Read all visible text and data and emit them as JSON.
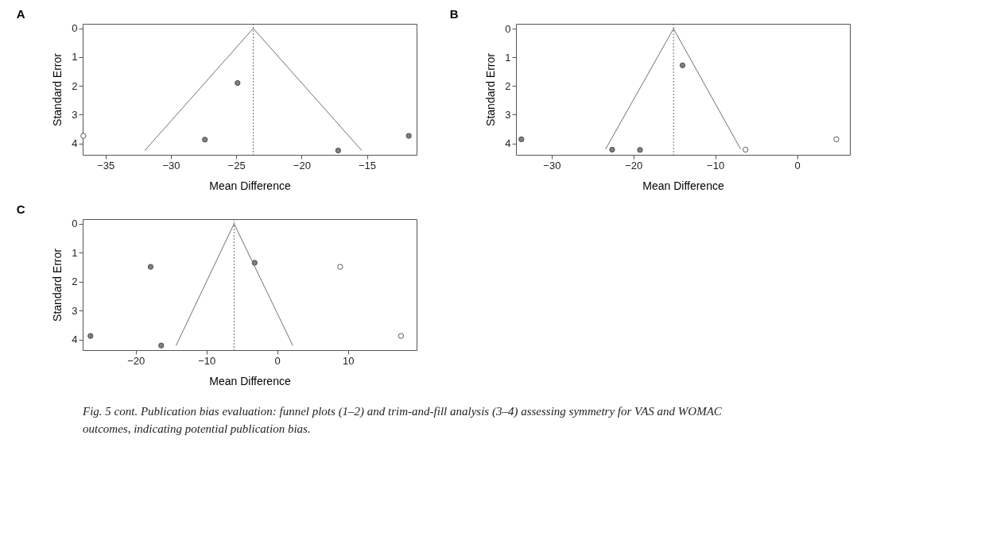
{
  "chart_data": [
    {
      "type": "scatter",
      "title": "A",
      "xlabel": "Mean Difference",
      "ylabel": "Standard Error",
      "marker": "circle",
      "grid": false,
      "xlim": [
        -36.75,
        -11.2
      ],
      "xticks": [
        -35,
        -30,
        -25,
        -20,
        -15
      ],
      "ylim": [
        4.4,
        -0.16
      ],
      "yticks": [
        0,
        1,
        2,
        3,
        4
      ],
      "series": [
        {
          "color": "#808080",
          "x": [
            -24.9,
            -27.4,
            -17.2,
            -11.8
          ],
          "values": [
            1.9,
            3.87,
            4.25,
            3.74
          ]
        },
        {
          "color": "#ffffff",
          "x": [
            -36.7
          ],
          "values": [
            3.74
          ]
        },
        {
          "type": "line",
          "marker": "none",
          "color": "#707070",
          "x": [
            -32.0,
            -23.7,
            -15.4
          ],
          "values": [
            4.25,
            0,
            4.25
          ]
        }
      ],
      "ref_lines": [
        {
          "axis": "x",
          "value": -23.7,
          "color": "#707070",
          "line_style": "dotted"
        }
      ]
    },
    {
      "type": "scatter",
      "title": "B",
      "xlabel": "Mean Difference",
      "ylabel": "Standard Error",
      "marker": "circle",
      "grid": false,
      "xlim": [
        -34.36,
        6.46
      ],
      "xticks": [
        -30,
        -20,
        -10,
        0
      ],
      "ylim": [
        4.4,
        -0.17
      ],
      "yticks": [
        0,
        1,
        2,
        3,
        4
      ],
      "series": [
        {
          "color": "#808080",
          "x": [
            -33.7,
            -22.6,
            -19.2,
            -14.0
          ],
          "values": [
            3.86,
            4.22,
            4.23,
            1.28
          ]
        },
        {
          "color": "#ffffff",
          "x": [
            -6.3,
            4.8
          ],
          "values": [
            4.22,
            3.86
          ]
        },
        {
          "type": "line",
          "marker": "none",
          "color": "#707070",
          "x": [
            -23.4,
            -15.1,
            -6.9
          ],
          "values": [
            4.2,
            0,
            4.2
          ]
        }
      ],
      "ref_lines": [
        {
          "axis": "x",
          "value": -15.1,
          "color": "#707070",
          "line_style": "dotted"
        }
      ]
    },
    {
      "type": "scatter",
      "title": "C",
      "xlabel": "Mean Difference",
      "ylabel": "Standard Error",
      "marker": "circle",
      "grid": false,
      "xlim": [
        -27.5,
        19.7
      ],
      "xticks": [
        -20,
        -10,
        0,
        10
      ],
      "ylim": [
        4.37,
        -0.16
      ],
      "yticks": [
        0,
        1,
        2,
        3,
        4
      ],
      "series": [
        {
          "color": "#808080",
          "x": [
            -26.4,
            -17.9,
            -16.4,
            -3.2
          ],
          "values": [
            3.88,
            1.49,
            4.21,
            1.35
          ]
        },
        {
          "color": "#ffffff",
          "x": [
            8.9,
            17.5
          ],
          "values": [
            1.49,
            3.88
          ]
        },
        {
          "type": "line",
          "marker": "none",
          "color": "#707070",
          "x": [
            -14.3,
            -6.1,
            2.2
          ],
          "values": [
            4.21,
            0,
            4.21
          ]
        }
      ],
      "ref_lines": [
        {
          "axis": "x",
          "value": -6.1,
          "color": "#707070",
          "line_style": "dotted"
        }
      ],
      "annotations": [
        "Fig. 5 cont. Publication bias evaluation: funnel plots (1–2) and trim-and-fill analysis (3–4) assessing symmetry for VAS and WOMAC outcomes, indicating potential publication bias."
      ]
    }
  ]
}
